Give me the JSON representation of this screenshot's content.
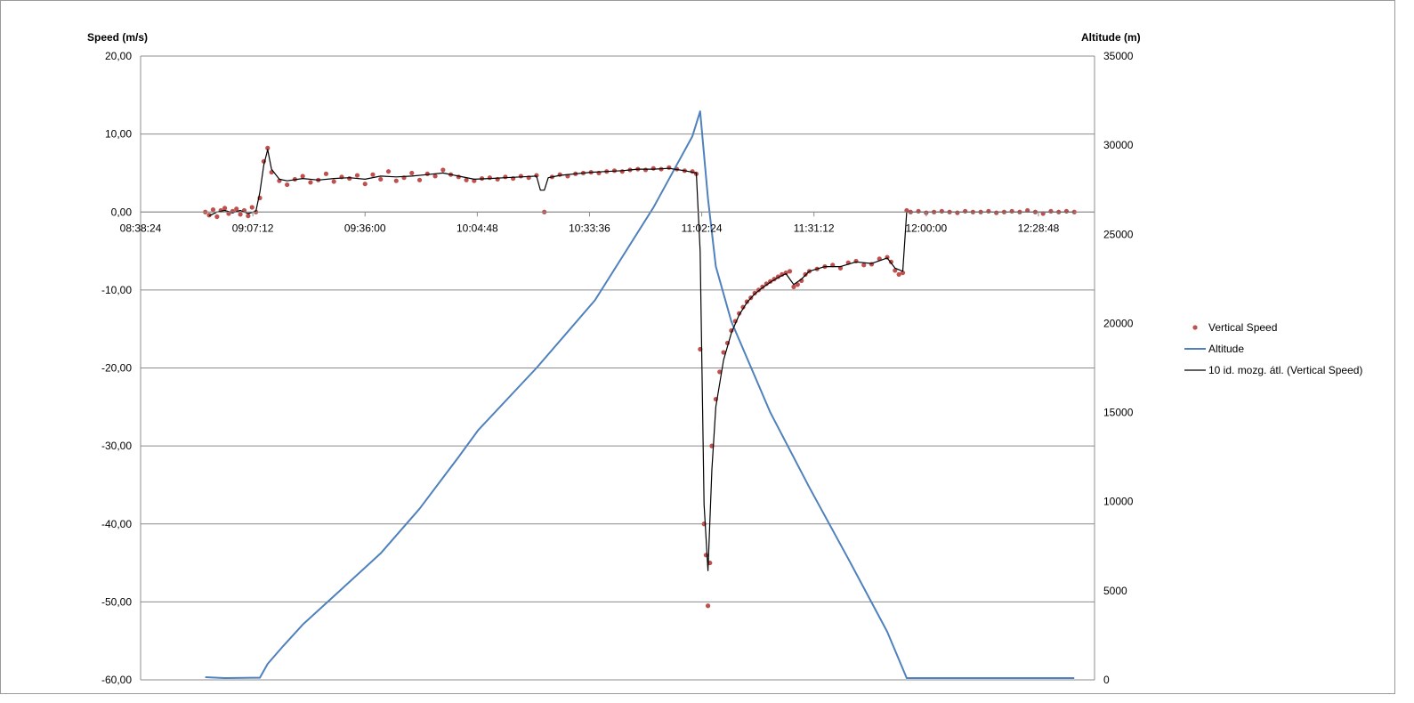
{
  "chart_data": {
    "type": "line",
    "title": "",
    "y_left_label": "Speed (m/s)",
    "y_right_label": "Altitude (m)",
    "y_left_range": [
      -60,
      20
    ],
    "y_left_ticks": [
      "20,00",
      "10,00",
      "0,00",
      "-10,00",
      "-20,00",
      "-30,00",
      "-40,00",
      "-50,00",
      "-60,00"
    ],
    "y_right_range": [
      0,
      35000
    ],
    "y_right_ticks": [
      "35000",
      "30000",
      "25000",
      "20000",
      "15000",
      "10000",
      "5000",
      "0"
    ],
    "x_range": [
      "08:38:24",
      "12:43:12"
    ],
    "x_ticks": [
      "08:38:24",
      "09:07:12",
      "09:36:00",
      "10:04:48",
      "10:33:36",
      "11:02:24",
      "11:31:12",
      "12:00:00",
      "12:28:48"
    ],
    "grid": "horizontal",
    "legend_position": "right",
    "series": [
      {
        "name": "Vertical Speed",
        "kind": "scatter",
        "axis": "left",
        "color": "#c0504d",
        "points": [
          [
            "08:55:00",
            0.0
          ],
          [
            "08:56:00",
            -0.4
          ],
          [
            "08:57:00",
            0.3
          ],
          [
            "08:58:00",
            -0.6
          ],
          [
            "08:59:00",
            0.2
          ],
          [
            "09:00:00",
            0.5
          ],
          [
            "09:01:00",
            -0.2
          ],
          [
            "09:02:00",
            0.1
          ],
          [
            "09:03:00",
            0.4
          ],
          [
            "09:04:00",
            -0.3
          ],
          [
            "09:05:00",
            0.2
          ],
          [
            "09:06:00",
            -0.5
          ],
          [
            "09:07:00",
            0.6
          ],
          [
            "09:08:00",
            0.0
          ],
          [
            "09:09:00",
            1.8
          ],
          [
            "09:10:00",
            6.5
          ],
          [
            "09:11:00",
            8.2
          ],
          [
            "09:12:00",
            5.1
          ],
          [
            "09:14:00",
            4.0
          ],
          [
            "09:16:00",
            3.5
          ],
          [
            "09:18:00",
            4.2
          ],
          [
            "09:20:00",
            4.6
          ],
          [
            "09:22:00",
            3.8
          ],
          [
            "09:24:00",
            4.1
          ],
          [
            "09:26:00",
            4.9
          ],
          [
            "09:28:00",
            3.9
          ],
          [
            "09:30:00",
            4.5
          ],
          [
            "09:32:00",
            4.3
          ],
          [
            "09:34:00",
            4.7
          ],
          [
            "09:36:00",
            3.6
          ],
          [
            "09:38:00",
            4.8
          ],
          [
            "09:40:00",
            4.2
          ],
          [
            "09:42:00",
            5.2
          ],
          [
            "09:44:00",
            4.0
          ],
          [
            "09:46:00",
            4.4
          ],
          [
            "09:48:00",
            5.0
          ],
          [
            "09:50:00",
            4.1
          ],
          [
            "09:52:00",
            4.9
          ],
          [
            "09:54:00",
            4.6
          ],
          [
            "09:56:00",
            5.4
          ],
          [
            "09:58:00",
            4.8
          ],
          [
            "10:00:00",
            4.5
          ],
          [
            "10:02:00",
            4.1
          ],
          [
            "10:04:00",
            4.0
          ],
          [
            "10:06:00",
            4.3
          ],
          [
            "10:08:00",
            4.4
          ],
          [
            "10:10:00",
            4.2
          ],
          [
            "10:12:00",
            4.5
          ],
          [
            "10:14:00",
            4.3
          ],
          [
            "10:16:00",
            4.6
          ],
          [
            "10:18:00",
            4.4
          ],
          [
            "10:20:00",
            4.7
          ],
          [
            "10:22:00",
            0.0
          ],
          [
            "10:24:00",
            4.5
          ],
          [
            "10:26:00",
            4.8
          ],
          [
            "10:28:00",
            4.6
          ],
          [
            "10:30:00",
            4.9
          ],
          [
            "10:32:00",
            5.0
          ],
          [
            "10:34:00",
            5.1
          ],
          [
            "10:36:00",
            5.0
          ],
          [
            "10:38:00",
            5.2
          ],
          [
            "10:40:00",
            5.3
          ],
          [
            "10:42:00",
            5.2
          ],
          [
            "10:44:00",
            5.4
          ],
          [
            "10:46:00",
            5.5
          ],
          [
            "10:48:00",
            5.4
          ],
          [
            "10:50:00",
            5.6
          ],
          [
            "10:52:00",
            5.5
          ],
          [
            "10:54:00",
            5.7
          ],
          [
            "10:56:00",
            5.5
          ],
          [
            "10:58:00",
            5.3
          ],
          [
            "11:00:00",
            5.2
          ],
          [
            "11:01:00",
            4.9
          ],
          [
            "11:02:00",
            -17.6
          ],
          [
            "11:03:00",
            -40.0
          ],
          [
            "11:03:30",
            -44.0
          ],
          [
            "11:04:00",
            -50.5
          ],
          [
            "11:04:30",
            -45.0
          ],
          [
            "11:05:00",
            -30.0
          ],
          [
            "11:06:00",
            -24.0
          ],
          [
            "11:07:00",
            -20.5
          ],
          [
            "11:08:00",
            -18.0
          ],
          [
            "11:09:00",
            -16.8
          ],
          [
            "11:10:00",
            -15.2
          ],
          [
            "11:11:00",
            -14.0
          ],
          [
            "11:12:00",
            -13.0
          ],
          [
            "11:13:00",
            -12.2
          ],
          [
            "11:14:00",
            -11.5
          ],
          [
            "11:15:00",
            -11.0
          ],
          [
            "11:16:00",
            -10.4
          ],
          [
            "11:17:00",
            -10.0
          ],
          [
            "11:18:00",
            -9.6
          ],
          [
            "11:19:00",
            -9.2
          ],
          [
            "11:20:00",
            -8.9
          ],
          [
            "11:21:00",
            -8.6
          ],
          [
            "11:22:00",
            -8.3
          ],
          [
            "11:23:00",
            -8.0
          ],
          [
            "11:24:00",
            -7.8
          ],
          [
            "11:25:00",
            -7.6
          ],
          [
            "11:26:00",
            -9.6
          ],
          [
            "11:27:00",
            -9.3
          ],
          [
            "11:28:00",
            -8.8
          ],
          [
            "11:29:00",
            -8.0
          ],
          [
            "11:30:00",
            -7.6
          ],
          [
            "11:32:00",
            -7.3
          ],
          [
            "11:34:00",
            -7.0
          ],
          [
            "11:36:00",
            -6.8
          ],
          [
            "11:38:00",
            -7.2
          ],
          [
            "11:40:00",
            -6.5
          ],
          [
            "11:42:00",
            -6.3
          ],
          [
            "11:44:00",
            -6.8
          ],
          [
            "11:46:00",
            -6.7
          ],
          [
            "11:48:00",
            -6.0
          ],
          [
            "11:50:00",
            -5.8
          ],
          [
            "11:51:00",
            -6.4
          ],
          [
            "11:52:00",
            -7.5
          ],
          [
            "11:53:00",
            -8.0
          ],
          [
            "11:54:00",
            -7.8
          ],
          [
            "11:55:00",
            0.2
          ],
          [
            "11:56:00",
            0.0
          ],
          [
            "11:58:00",
            0.1
          ],
          [
            "12:00:00",
            -0.1
          ],
          [
            "12:02:00",
            0.0
          ],
          [
            "12:04:00",
            0.1
          ],
          [
            "12:06:00",
            0.0
          ],
          [
            "12:08:00",
            -0.1
          ],
          [
            "12:10:00",
            0.1
          ],
          [
            "12:12:00",
            0.0
          ],
          [
            "12:14:00",
            0.0
          ],
          [
            "12:16:00",
            0.1
          ],
          [
            "12:18:00",
            -0.1
          ],
          [
            "12:20:00",
            0.0
          ],
          [
            "12:22:00",
            0.1
          ],
          [
            "12:24:00",
            0.0
          ],
          [
            "12:26:00",
            0.2
          ],
          [
            "12:28:00",
            0.0
          ],
          [
            "12:30:00",
            -0.2
          ],
          [
            "12:32:00",
            0.1
          ],
          [
            "12:34:00",
            0.0
          ],
          [
            "12:36:00",
            0.1
          ],
          [
            "12:38:00",
            0.0
          ]
        ]
      },
      {
        "name": "Altitude",
        "kind": "line",
        "axis": "right",
        "color": "#4f81bd",
        "points": [
          [
            "08:55:00",
            150
          ],
          [
            "09:00:00",
            100
          ],
          [
            "09:05:00",
            110
          ],
          [
            "09:07:00",
            120
          ],
          [
            "09:09:00",
            120
          ],
          [
            "09:11:00",
            900
          ],
          [
            "09:15:00",
            1900
          ],
          [
            "09:20:00",
            3100
          ],
          [
            "09:30:00",
            5100
          ],
          [
            "09:40:00",
            7100
          ],
          [
            "09:50:00",
            9600
          ],
          [
            "10:00:00",
            12500
          ],
          [
            "10:05:00",
            14000
          ],
          [
            "10:20:00",
            17500
          ],
          [
            "10:35:00",
            21300
          ],
          [
            "10:50:00",
            26500
          ],
          [
            "11:00:00",
            30500
          ],
          [
            "11:02:00",
            31900
          ],
          [
            "11:04:00",
            27000
          ],
          [
            "11:06:00",
            23200
          ],
          [
            "11:10:00",
            20100
          ],
          [
            "11:20:00",
            15000
          ],
          [
            "11:30:00",
            10800
          ],
          [
            "11:40:00",
            6800
          ],
          [
            "11:50:00",
            2700
          ],
          [
            "11:55:00",
            100
          ],
          [
            "12:10:00",
            100
          ],
          [
            "12:38:00",
            100
          ]
        ]
      },
      {
        "name": "10 id. mozg. átl. (Vertical Speed)",
        "kind": "line",
        "axis": "left",
        "color": "#000000",
        "points": [
          [
            "08:56:00",
            -0.5
          ],
          [
            "08:58:00",
            0.0
          ],
          [
            "09:00:00",
            0.2
          ],
          [
            "09:02:00",
            -0.1
          ],
          [
            "09:04:00",
            0.2
          ],
          [
            "09:06:00",
            -0.2
          ],
          [
            "09:08:00",
            0.1
          ],
          [
            "09:09:00",
            2.5
          ],
          [
            "09:10:00",
            6.0
          ],
          [
            "09:11:00",
            8.0
          ],
          [
            "09:12:00",
            5.5
          ],
          [
            "09:14:00",
            4.2
          ],
          [
            "09:16:00",
            4.0
          ],
          [
            "09:20:00",
            4.3
          ],
          [
            "09:24:00",
            4.1
          ],
          [
            "09:28:00",
            4.3
          ],
          [
            "09:32:00",
            4.4
          ],
          [
            "09:36:00",
            4.2
          ],
          [
            "09:40:00",
            4.6
          ],
          [
            "09:44:00",
            4.5
          ],
          [
            "09:48:00",
            4.6
          ],
          [
            "09:52:00",
            4.8
          ],
          [
            "09:56:00",
            5.0
          ],
          [
            "10:00:00",
            4.6
          ],
          [
            "10:04:00",
            4.2
          ],
          [
            "10:08:00",
            4.3
          ],
          [
            "10:12:00",
            4.4
          ],
          [
            "10:16:00",
            4.5
          ],
          [
            "10:20:00",
            4.6
          ],
          [
            "10:21:00",
            2.8
          ],
          [
            "10:22:00",
            2.8
          ],
          [
            "10:23:00",
            4.4
          ],
          [
            "10:26:00",
            4.7
          ],
          [
            "10:30:00",
            4.9
          ],
          [
            "10:34:00",
            5.1
          ],
          [
            "10:38:00",
            5.2
          ],
          [
            "10:42:00",
            5.3
          ],
          [
            "10:46:00",
            5.5
          ],
          [
            "10:50:00",
            5.5
          ],
          [
            "10:54:00",
            5.6
          ],
          [
            "10:58:00",
            5.3
          ],
          [
            "11:01:00",
            5.0
          ],
          [
            "11:02:00",
            -5.0
          ],
          [
            "11:03:00",
            -37.5
          ],
          [
            "11:04:00",
            -46.0
          ],
          [
            "11:05:00",
            -33.0
          ],
          [
            "11:06:00",
            -25.0
          ],
          [
            "11:08:00",
            -19.0
          ],
          [
            "11:10:00",
            -15.5
          ],
          [
            "11:12:00",
            -13.2
          ],
          [
            "11:14:00",
            -11.6
          ],
          [
            "11:16:00",
            -10.5
          ],
          [
            "11:18:00",
            -9.7
          ],
          [
            "11:20:00",
            -9.0
          ],
          [
            "11:22:00",
            -8.4
          ],
          [
            "11:24:00",
            -7.9
          ],
          [
            "11:26:00",
            -9.3
          ],
          [
            "11:28:00",
            -8.6
          ],
          [
            "11:30:00",
            -7.6
          ],
          [
            "11:34:00",
            -7.0
          ],
          [
            "11:38:00",
            -7.0
          ],
          [
            "11:42:00",
            -6.4
          ],
          [
            "11:46:00",
            -6.6
          ],
          [
            "11:50:00",
            -5.9
          ],
          [
            "11:52:00",
            -7.2
          ],
          [
            "11:54:00",
            -7.6
          ],
          [
            "11:55:00",
            0.0
          ],
          [
            "12:00:00",
            0.0
          ],
          [
            "12:10:00",
            0.0
          ],
          [
            "12:20:00",
            0.0
          ],
          [
            "12:30:00",
            0.0
          ],
          [
            "12:38:00",
            0.0
          ]
        ]
      }
    ]
  }
}
